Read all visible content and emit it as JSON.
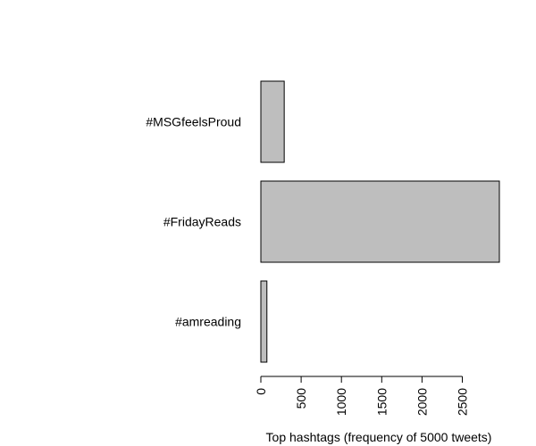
{
  "chart_data": {
    "type": "bar",
    "orientation": "horizontal",
    "categories": [
      "#amreading",
      "#FridayReads",
      "#MSGfeelsProud"
    ],
    "values": [
      75,
      2960,
      290
    ],
    "xlabel": "Top hashtags (frequency of 5000 tweets)",
    "ylabel": "",
    "title": "",
    "xlim": [
      0,
      2960
    ],
    "xticks": [
      0,
      500,
      1000,
      1500,
      2000,
      2500
    ],
    "bar_color": "#bebebe",
    "edge_color": "#000000",
    "grid": false
  }
}
